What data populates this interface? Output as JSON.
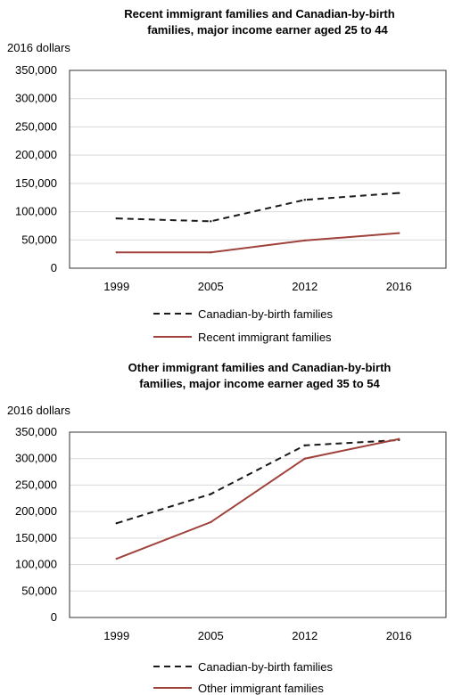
{
  "chart_data": [
    {
      "type": "line",
      "title_line1": "Recent immigrant families and Canadian-by-birth",
      "title_line2": "families, major income earner aged 25 to 44",
      "ylabel": "2016 dollars",
      "xlabel": "",
      "categories": [
        "1999",
        "2005",
        "2012",
        "2016"
      ],
      "ylim": [
        0,
        350000
      ],
      "yticks": [
        0,
        50000,
        100000,
        150000,
        200000,
        250000,
        300000,
        350000
      ],
      "ytick_labels": [
        "0",
        "50,000",
        "100,000",
        "150,000",
        "200,000",
        "250,000",
        "300,000",
        "350,000"
      ],
      "grid": "horizontal",
      "legend_position": "bottom",
      "series": [
        {
          "name": "Canadian-by-birth families",
          "values": [
            88000,
            83000,
            121000,
            133000
          ],
          "color": "#1a1a1a",
          "style": "dashed"
        },
        {
          "name": "Recent immigrant families",
          "values": [
            28000,
            28000,
            49000,
            62000
          ],
          "color": "#a0413b",
          "style": "solid"
        }
      ]
    },
    {
      "type": "line",
      "title_line1": "Other immigrant families and Canadian-by-birth",
      "title_line2": "families, major income earner aged 35 to 54",
      "ylabel": "2016 dollars",
      "xlabel": "",
      "categories": [
        "1999",
        "2005",
        "2012",
        "2016"
      ],
      "ylim": [
        0,
        350000
      ],
      "yticks": [
        0,
        50000,
        100000,
        150000,
        200000,
        250000,
        300000,
        350000
      ],
      "ytick_labels": [
        "0",
        "50,000",
        "100,000",
        "150,000",
        "200,000",
        "250,000",
        "300,000",
        "350,000"
      ],
      "grid": "horizontal",
      "legend_position": "bottom",
      "series": [
        {
          "name": "Canadian-by-birth families",
          "values": [
            178000,
            233000,
            325000,
            335000
          ],
          "color": "#1a1a1a",
          "style": "dashed"
        },
        {
          "name": "Other immigrant families",
          "values": [
            111000,
            180000,
            300000,
            337000
          ],
          "color": "#a0413b",
          "style": "solid"
        }
      ]
    }
  ]
}
